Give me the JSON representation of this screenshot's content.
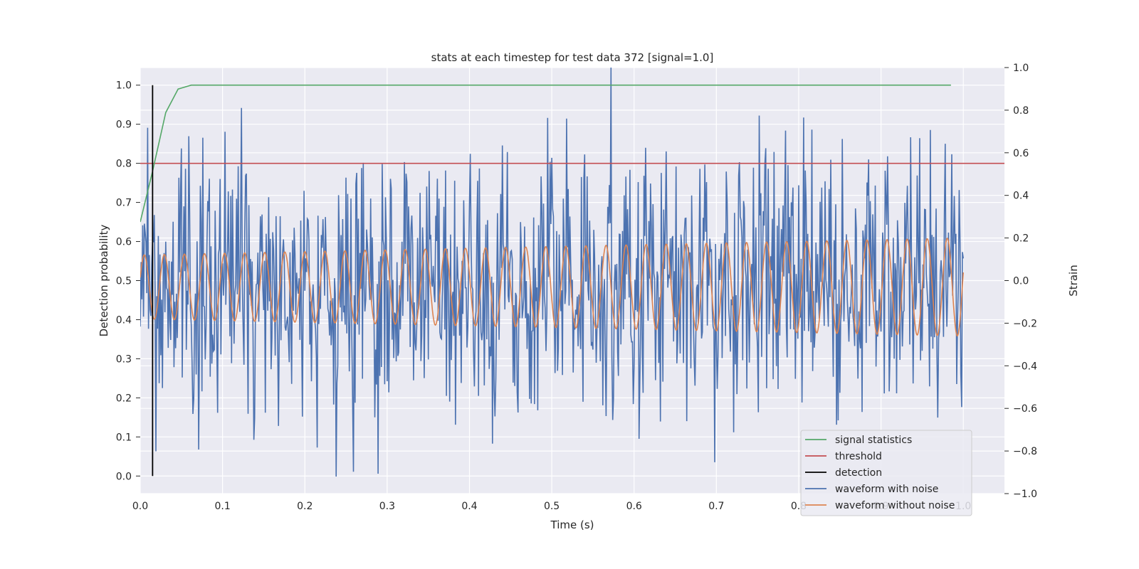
{
  "chart_data": {
    "type": "line",
    "title": "stats at each timestep for test data 372 [signal=1.0]",
    "xlabel": "Time (s)",
    "ylabel_left": "Detection probability",
    "ylabel_right": "Strain",
    "xlim": [
      0.0,
      1.05
    ],
    "ylim_left": [
      -0.045,
      1.045
    ],
    "ylim_right": [
      -1.0,
      1.0
    ],
    "x_ticks": [
      "0.0",
      "0.1",
      "0.2",
      "0.3",
      "0.4",
      "0.5",
      "0.6",
      "0.7",
      "0.8",
      "0.9",
      "1.0"
    ],
    "y_ticks_left": [
      "0.0",
      "0.1",
      "0.2",
      "0.3",
      "0.4",
      "0.5",
      "0.6",
      "0.7",
      "0.8",
      "0.9",
      "1.0"
    ],
    "y_ticks_right": [
      "−1.0",
      "−0.8",
      "−0.6",
      "−0.4",
      "−0.2",
      "0.0",
      "0.2",
      "0.4",
      "0.6",
      "0.8",
      "1.0"
    ],
    "grid": true,
    "legend_position": "lower-right",
    "colors": {
      "signal_statistics": "#55a868",
      "threshold": "#c44e52",
      "detection": "#000000",
      "waveform_with_noise": "#4c72b0",
      "waveform_without_noise": "#dd8452",
      "background": "#eaeaf2",
      "grid": "#ffffff"
    },
    "series": [
      {
        "name": "signal statistics",
        "axis": "left",
        "x": [
          0.0,
          0.015,
          0.031,
          0.046,
          0.062,
          0.077,
          0.1,
          0.2,
          0.4,
          0.6,
          0.8,
          0.985
        ],
        "y": [
          0.65,
          0.78,
          0.93,
          0.99,
          1.0,
          1.0,
          1.0,
          1.0,
          1.0,
          1.0,
          1.0,
          1.0
        ]
      },
      {
        "name": "threshold",
        "axis": "left",
        "x": [
          0.0,
          1.05
        ],
        "y": [
          0.8,
          0.8
        ]
      },
      {
        "name": "detection",
        "axis": "left",
        "x": [
          0.015,
          0.015
        ],
        "y": [
          0.0,
          1.0
        ]
      },
      {
        "name": "waveform with noise",
        "axis": "right",
        "description_free": true,
        "n_points": 1000,
        "x_range": [
          0.0,
          1.0
        ],
        "amplitude_std": 0.3,
        "max_value": 1.0,
        "min_value": -0.92
      },
      {
        "name": "waveform without noise",
        "axis": "right",
        "x_range": [
          0.0,
          1.0
        ],
        "amplitude_start": 0.15,
        "amplitude_end": 0.23,
        "offset": -0.03,
        "cycles": 41
      }
    ],
    "legend": [
      "signal statistics",
      "threshold",
      "detection",
      "waveform with noise",
      "waveform without noise"
    ]
  }
}
